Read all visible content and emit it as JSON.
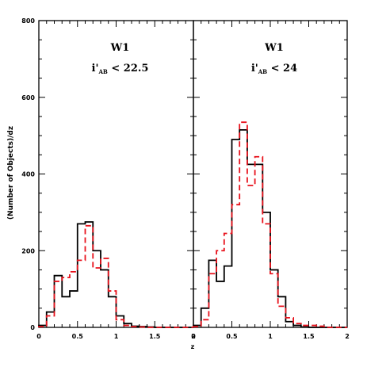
{
  "chart_data": {
    "type": "histogram-panels",
    "ylabel": "(Number of Objects)/dz",
    "xlabel": "z",
    "ylim": [
      0,
      800
    ],
    "yticks": [
      "0",
      "200",
      "400",
      "600",
      "800"
    ],
    "xticks": [
      "0",
      "0.5",
      "1",
      "1.5",
      "2"
    ],
    "bin_width": 0.1,
    "series_styles": [
      {
        "key": "solid",
        "color": "#000000",
        "dash": "none"
      },
      {
        "key": "dashed",
        "color": "#e8121c",
        "dash": "7,4"
      }
    ],
    "panels": [
      {
        "title": "W1",
        "condition": "i'",
        "condition_sub": "AB",
        "condition_rest": " < 22.5",
        "xlim": [
          0,
          2
        ],
        "bin_edges": [
          0.0,
          0.1,
          0.2,
          0.3,
          0.4,
          0.5,
          0.6,
          0.7,
          0.8,
          0.9,
          1.0,
          1.1,
          1.2,
          1.3,
          1.4,
          1.5,
          1.6,
          1.7,
          1.8,
          1.9,
          2.0
        ],
        "solid": [
          5,
          40,
          135,
          80,
          95,
          270,
          275,
          200,
          150,
          80,
          30,
          10,
          3,
          2,
          1,
          0,
          0,
          0,
          0,
          0
        ],
        "dashed": [
          2,
          30,
          120,
          130,
          145,
          175,
          265,
          155,
          180,
          95,
          20,
          5,
          2,
          1,
          0,
          0,
          0,
          0,
          0,
          0
        ]
      },
      {
        "title": "W1",
        "condition": "i'",
        "condition_sub": "AB",
        "condition_rest": " < 24",
        "xlim": [
          0,
          2
        ],
        "bin_edges": [
          0.0,
          0.1,
          0.2,
          0.3,
          0.4,
          0.5,
          0.6,
          0.7,
          0.8,
          0.9,
          1.0,
          1.1,
          1.2,
          1.3,
          1.4,
          1.5,
          1.6,
          1.7,
          1.8,
          1.9,
          2.0
        ],
        "solid": [
          5,
          50,
          175,
          120,
          160,
          490,
          515,
          425,
          425,
          300,
          150,
          80,
          15,
          5,
          1,
          0,
          0,
          0,
          0,
          0
        ],
        "dashed": [
          2,
          20,
          140,
          200,
          245,
          320,
          535,
          370,
          445,
          270,
          140,
          55,
          25,
          10,
          5,
          5,
          3,
          0,
          0,
          0
        ]
      }
    ]
  }
}
